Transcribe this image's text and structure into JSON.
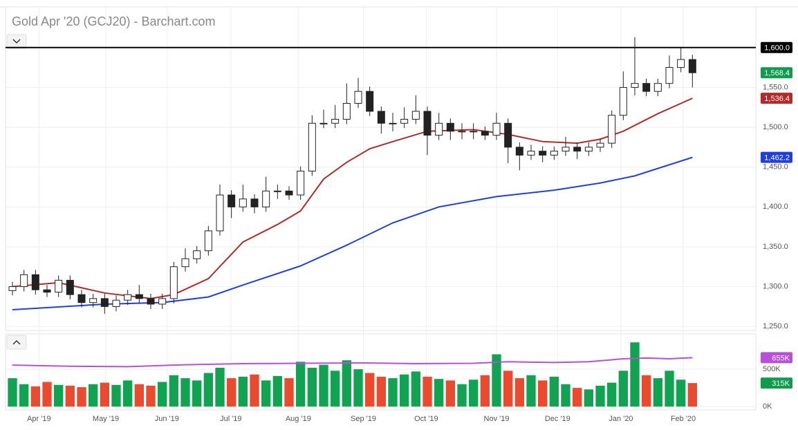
{
  "chart_data": [
    {
      "type": "candlestick",
      "title": "Gold Apr '20 (GCJ20) - Barchart.com",
      "xlim": [
        -0.6,
        64.5
      ],
      "xticks": [
        {
          "value": 2.3,
          "label": "Apr '19"
        },
        {
          "value": 8.1,
          "label": "May '19"
        },
        {
          "value": 13.4,
          "label": "Jun '19"
        },
        {
          "value": 18.95,
          "label": "Jul '19"
        },
        {
          "value": 24.8,
          "label": "Aug '19"
        },
        {
          "value": 30.45,
          "label": "Sep '19"
        },
        {
          "value": 35.9,
          "label": "Oct '19"
        },
        {
          "value": 42.0,
          "label": "Nov '19"
        },
        {
          "value": 47.3,
          "label": "Dec '19"
        },
        {
          "value": 52.8,
          "label": "Jan '20"
        },
        {
          "value": 58.2,
          "label": "Feb '20"
        }
      ],
      "ylim": [
        1245,
        1651
      ],
      "yticks": [
        {
          "value": 1250,
          "label": "1,250.0"
        },
        {
          "value": 1300,
          "label": "1,300.0"
        },
        {
          "value": 1350,
          "label": "1,350.0"
        },
        {
          "value": 1400,
          "label": "1,400.0"
        },
        {
          "value": 1450,
          "label": "1,450.0"
        },
        {
          "value": 1500,
          "label": "1,500.0"
        },
        {
          "value": 1550,
          "label": "1,550.0"
        }
      ],
      "hline": {
        "value": 1600,
        "label": "1,600.0",
        "color": "#000000"
      },
      "open": [
        1295,
        1300,
        1315,
        1296,
        1293,
        1308,
        1290,
        1280,
        1285,
        1275,
        1283,
        1290,
        1285,
        1278,
        1285,
        1325,
        1335,
        1345,
        1370,
        1415,
        1400,
        1410,
        1400,
        1420,
        1420,
        1415,
        1445,
        1505,
        1505,
        1510,
        1530,
        1545,
        1520,
        1505,
        1505,
        1510,
        1520,
        1490,
        1505,
        1495,
        1495,
        1495,
        1490,
        1505,
        1475,
        1465,
        1470,
        1465,
        1470,
        1475,
        1470,
        1475,
        1480,
        1515,
        1550,
        1555,
        1545,
        1555,
        1575,
        1585
      ],
      "high": [
        1306,
        1321,
        1321,
        1302,
        1314,
        1314,
        1296,
        1291,
        1291,
        1289,
        1296,
        1302,
        1291,
        1291,
        1331,
        1348,
        1351,
        1376,
        1428,
        1421,
        1428,
        1416,
        1438,
        1428,
        1426,
        1451,
        1515,
        1522,
        1528,
        1555,
        1562,
        1551,
        1526,
        1518,
        1525,
        1540,
        1526,
        1518,
        1511,
        1505,
        1505,
        1501,
        1518,
        1511,
        1481,
        1478,
        1476,
        1476,
        1488,
        1481,
        1481,
        1486,
        1521,
        1570,
        1613,
        1561,
        1561,
        1590,
        1600,
        1591
      ],
      "low": [
        1289,
        1294,
        1290,
        1287,
        1287,
        1284,
        1274,
        1274,
        1266,
        1269,
        1277,
        1279,
        1272,
        1272,
        1279,
        1319,
        1329,
        1339,
        1364,
        1386,
        1394,
        1392,
        1394,
        1410,
        1409,
        1409,
        1439,
        1499,
        1499,
        1504,
        1524,
        1514,
        1492,
        1495,
        1499,
        1504,
        1465,
        1484,
        1484,
        1485,
        1485,
        1484,
        1484,
        1455,
        1446,
        1459,
        1456,
        1459,
        1464,
        1460,
        1464,
        1469,
        1474,
        1509,
        1540,
        1539,
        1539,
        1549,
        1569,
        1550
      ],
      "close": [
        1300,
        1315,
        1296,
        1293,
        1308,
        1290,
        1280,
        1285,
        1275,
        1283,
        1290,
        1285,
        1278,
        1285,
        1325,
        1335,
        1345,
        1370,
        1415,
        1400,
        1410,
        1400,
        1420,
        1420,
        1415,
        1445,
        1505,
        1505,
        1510,
        1530,
        1545,
        1520,
        1505,
        1505,
        1510,
        1520,
        1490,
        1505,
        1495,
        1495,
        1495,
        1490,
        1505,
        1475,
        1465,
        1470,
        1465,
        1470,
        1475,
        1470,
        1475,
        1480,
        1515,
        1550,
        1555,
        1545,
        1555,
        1575,
        1585,
        1568.4
      ],
      "series": [
        {
          "color": "#b22a2a",
          "x": [
            0,
            4,
            8,
            12,
            14,
            17,
            20,
            23,
            25,
            27,
            29,
            31,
            33,
            36,
            40,
            43,
            46,
            49,
            51,
            53,
            56,
            59
          ],
          "values": [
            1300,
            1305,
            1292,
            1285,
            1290,
            1310,
            1356,
            1378,
            1395,
            1435,
            1456,
            1473,
            1482,
            1495,
            1497,
            1491,
            1482,
            1480,
            1485,
            1495,
            1517,
            1536.4
          ]
        },
        {
          "color": "#1f3fdc",
          "x": [
            0,
            8,
            13,
            17,
            20,
            25,
            29,
            33,
            37,
            42,
            47,
            51,
            54,
            59
          ],
          "values": [
            1271,
            1278,
            1280,
            1287,
            1302,
            1326,
            1352,
            1380,
            1400,
            1413,
            1421,
            1430,
            1439,
            1462.2
          ]
        }
      ],
      "markers": [
        {
          "value": 1568.4,
          "label": "1,568.4",
          "color": "#109c4c"
        },
        {
          "value": 1536.4,
          "label": "1,536.4",
          "color": "#b22a2a"
        },
        {
          "value": 1462.2,
          "label": "1,462.2",
          "color": "#1f3fdc"
        }
      ]
    },
    {
      "type": "bar",
      "ylim": [
        -45,
        973
      ],
      "yticks": [
        {
          "value": 0,
          "label": "0K"
        },
        {
          "value": 500,
          "label": "500K"
        }
      ],
      "up_color": "#11a352",
      "down_color": "#ea4a2e",
      "values": [
        380,
        300,
        270,
        330,
        290,
        280,
        260,
        300,
        320,
        290,
        350,
        300,
        280,
        330,
        420,
        380,
        350,
        450,
        520,
        380,
        400,
        430,
        350,
        410,
        380,
        600,
        520,
        560,
        480,
        620,
        500,
        450,
        400,
        380,
        430,
        470,
        400,
        370,
        350,
        300,
        360,
        420,
        700,
        480,
        380,
        420,
        350,
        400,
        300,
        250,
        230,
        280,
        320,
        480,
        860,
        420,
        380,
        480,
        360,
        315
      ],
      "series": [
        {
          "color": "#b84fd6",
          "x": [
            0,
            5,
            10,
            15,
            20,
            25,
            30,
            35,
            40,
            43,
            47,
            50,
            53,
            55,
            57,
            59
          ],
          "values": [
            555,
            540,
            535,
            560,
            575,
            580,
            585,
            575,
            580,
            600,
            590,
            600,
            640,
            650,
            640,
            655
          ]
        }
      ],
      "markers": [
        {
          "value": 655,
          "label": "655K",
          "color": "#b84fd6"
        },
        {
          "value": 315,
          "label": "315K",
          "color": "#109c4c"
        }
      ]
    }
  ]
}
